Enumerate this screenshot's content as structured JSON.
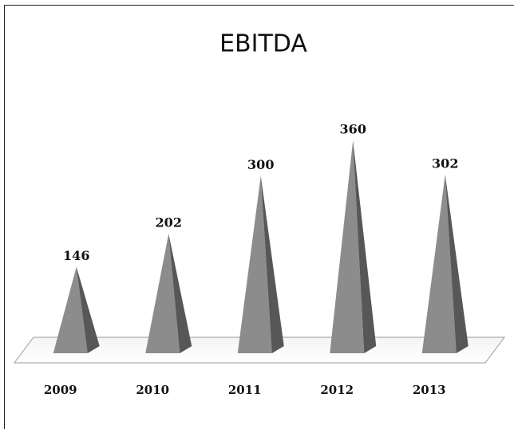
{
  "chart_data": {
    "type": "pyramid",
    "title": "EBITDA",
    "categories": [
      "2009",
      "2010",
      "2011",
      "2012",
      "2013"
    ],
    "values": [
      146,
      202,
      300,
      360,
      302
    ],
    "color": "#8c8c8c"
  }
}
